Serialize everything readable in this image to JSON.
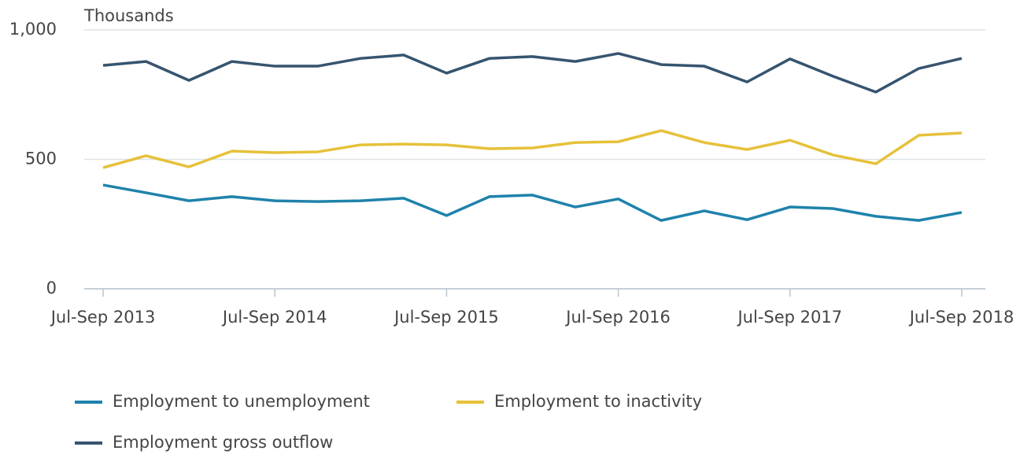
{
  "chart_data": {
    "type": "line",
    "y_axis_label": "Thousands",
    "categories": [
      "Jul-Sep 2013",
      null,
      null,
      null,
      "Jul-Sep 2014",
      null,
      null,
      null,
      "Jul-Sep 2015",
      null,
      null,
      null,
      "Jul-Sep 2016",
      null,
      null,
      null,
      "Jul-Sep 2017",
      null,
      null,
      null,
      "Jul-Sep 2018"
    ],
    "series": [
      {
        "name": "Employment to unemployment",
        "color": "#1f82ab",
        "values": [
          401,
          371,
          340,
          356,
          340,
          337,
          340,
          350,
          283,
          356,
          362,
          316,
          347,
          264,
          301,
          267,
          316,
          310,
          280,
          264,
          295
        ]
      },
      {
        "name": "Employment to inactivity",
        "color": "#e6c13a",
        "values": [
          468,
          514,
          471,
          532,
          526,
          529,
          556,
          559,
          556,
          541,
          544,
          565,
          568,
          611,
          565,
          538,
          574,
          517,
          483,
          593,
          602
        ]
      },
      {
        "name": "Employment gross outflow",
        "color": "#36546f",
        "values": [
          863,
          878,
          805,
          878,
          860,
          860,
          890,
          903,
          833,
          890,
          897,
          878,
          909,
          866,
          860,
          799,
          888,
          821,
          760,
          851,
          890
        ]
      }
    ],
    "ylim": [
      0,
      1000
    ],
    "yticks": [
      0,
      500,
      {
        "value": 1000,
        "label": "1,000"
      }
    ],
    "grid": true
  }
}
